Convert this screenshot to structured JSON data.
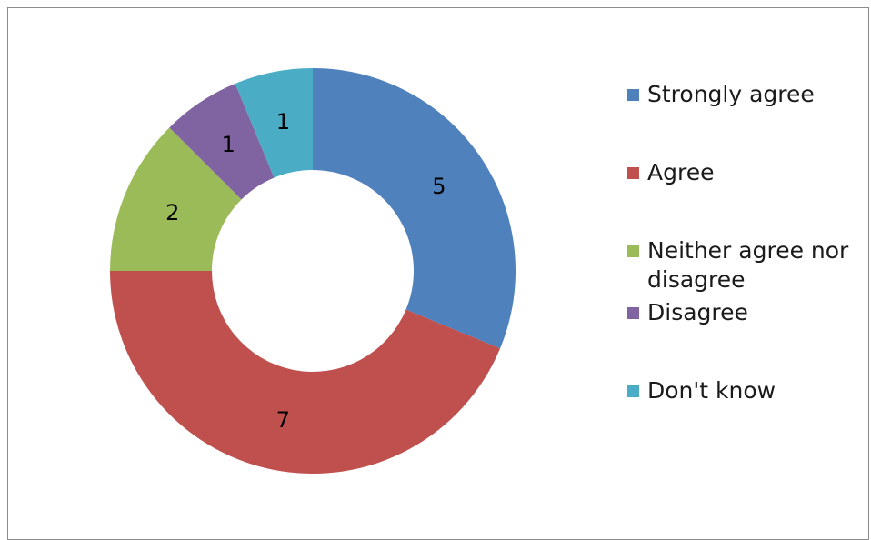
{
  "chart_data": {
    "type": "pie",
    "donut": true,
    "title": "",
    "categories": [
      "Strongly agree",
      "Agree",
      "Neither agree nor disagree",
      "Disagree",
      "Don't know"
    ],
    "values": [
      5,
      7,
      2,
      1,
      1
    ],
    "colors": [
      "#4f81bd",
      "#c0504d",
      "#9bbb59",
      "#8064a2",
      "#4bacc6"
    ],
    "legend": "right",
    "data_labels": [
      "5",
      "7",
      "2",
      "1",
      "1"
    ]
  }
}
